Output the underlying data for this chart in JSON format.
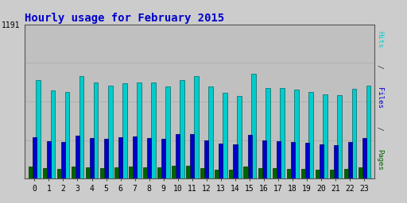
{
  "title": "Hourly usage for February 2015",
  "title_color": "#0000cc",
  "title_fontsize": 10,
  "background_color": "#cccccc",
  "plot_bg_color": "#c0c0c0",
  "hours": [
    0,
    1,
    2,
    3,
    4,
    5,
    6,
    7,
    8,
    9,
    10,
    11,
    12,
    13,
    14,
    15,
    16,
    17,
    18,
    19,
    20,
    21,
    22,
    23
  ],
  "pages": [
    95,
    80,
    75,
    92,
    87,
    83,
    90,
    91,
    86,
    87,
    97,
    98,
    82,
    72,
    71,
    94,
    80,
    79,
    77,
    75,
    70,
    70,
    78,
    87
  ],
  "files": [
    320,
    290,
    285,
    335,
    315,
    305,
    320,
    325,
    312,
    310,
    345,
    345,
    298,
    270,
    265,
    340,
    295,
    292,
    282,
    278,
    262,
    258,
    283,
    312
  ],
  "hits": [
    760,
    680,
    670,
    790,
    745,
    715,
    735,
    745,
    740,
    710,
    760,
    790,
    710,
    660,
    640,
    810,
    700,
    700,
    685,
    670,
    650,
    645,
    695,
    715
  ],
  "hits_max_label": "1191",
  "ylim_max": 1191,
  "bar_width": 0.28,
  "colors": {
    "pages": "#006400",
    "files": "#0000cc",
    "hits": "#00cccc"
  },
  "edgecolors": {
    "pages": "#003300",
    "files": "#000066",
    "hits": "#006666"
  },
  "grid_color": "#aaaaaa",
  "font_family": "monospace",
  "right_label_words": [
    "Pages",
    " / ",
    "Files",
    " / ",
    "Hits"
  ],
  "right_label_colors": [
    "#006400",
    "#333333",
    "#0000cc",
    "#333333",
    "#00cccc"
  ]
}
